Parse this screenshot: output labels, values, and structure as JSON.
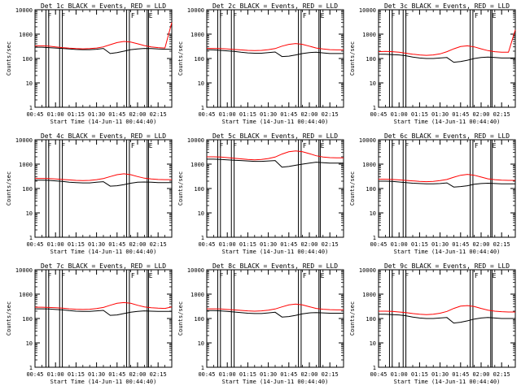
{
  "figure": {
    "xlabel": "Start Time (14-Jun-11 00:44:40)",
    "ylabel": "Counts/sec"
  },
  "chart_data": {
    "type": "line",
    "x_ticks": [
      "00:45",
      "01:00",
      "01:15",
      "01:30",
      "01:45",
      "02:00",
      "02:15"
    ],
    "y_ticks": [
      "1",
      "10",
      "100",
      "1000",
      "10000"
    ],
    "y_scale": "log",
    "ylim": [
      1,
      10000
    ],
    "xlim": [
      "00:45",
      "02:25"
    ],
    "grid": false,
    "vertical_markers": [
      {
        "x": "00:53",
        "label": "F"
      },
      {
        "x": "00:55",
        "label": ""
      },
      {
        "x": "01:03",
        "label": "F"
      },
      {
        "x": "01:05",
        "label": ""
      },
      {
        "x": "01:52",
        "label": ""
      },
      {
        "x": "01:54",
        "label": "F"
      },
      {
        "x": "02:07",
        "label": "E"
      },
      {
        "x": "02:08",
        "label": ""
      }
    ],
    "x_minutes": [
      45,
      50,
      55,
      60,
      65,
      70,
      75,
      80,
      85,
      90,
      95,
      100,
      105,
      110,
      115,
      120,
      125,
      130,
      135,
      140,
      145
    ],
    "panels": [
      {
        "title": "Det 1c BLACK = Events, RED = LLD",
        "series": [
          {
            "name": "Events",
            "color": "#000000",
            "values": [
              290,
              290,
              280,
              270,
              260,
              245,
              235,
              230,
              230,
              240,
              260,
              160,
              175,
              200,
              230,
              245,
              260,
              255,
              245,
              240,
              240
            ]
          },
          {
            "name": "LLD",
            "color": "#ff0000",
            "values": [
              330,
              330,
              320,
              300,
              280,
              265,
              255,
              250,
              255,
              270,
              300,
              370,
              450,
              500,
              470,
              400,
              340,
              300,
              280,
              270,
              3000
            ]
          }
        ]
      },
      {
        "title": "Det 2c BLACK = Events, RED = LLD",
        "series": [
          {
            "name": "Events",
            "color": "#000000",
            "values": [
              230,
              225,
              215,
              205,
              195,
              180,
              170,
              165,
              165,
              175,
              185,
              120,
              125,
              140,
              160,
              175,
              180,
              170,
              160,
              160,
              160
            ]
          },
          {
            "name": "LLD",
            "color": "#ff0000",
            "values": [
              260,
              260,
              255,
              245,
              235,
              225,
              215,
              210,
              215,
              230,
              255,
              320,
              380,
              410,
              380,
              320,
              270,
              245,
              230,
              225,
              225
            ]
          }
        ]
      },
      {
        "title": "Det 3c BLACK = Events, RED = LLD",
        "series": [
          {
            "name": "Events",
            "color": "#000000",
            "values": [
              150,
              150,
              145,
              140,
              130,
              115,
              105,
              100,
              100,
              105,
              110,
              70,
              75,
              85,
              100,
              110,
              115,
              110,
              105,
              105,
              105
            ]
          },
          {
            "name": "LLD",
            "color": "#ff0000",
            "values": [
              190,
              195,
              190,
              180,
              165,
              150,
              140,
              135,
              140,
              155,
              190,
              250,
              310,
              330,
              300,
              250,
              210,
              190,
              180,
              180,
              1500
            ]
          }
        ]
      },
      {
        "title": "Det 4c BLACK = Events, RED = LLD",
        "series": [
          {
            "name": "Events",
            "color": "#000000",
            "values": [
              220,
              220,
              215,
              205,
              195,
              180,
              175,
              170,
              170,
              180,
              190,
              125,
              130,
              145,
              165,
              180,
              185,
              180,
              175,
              175,
              175
            ]
          },
          {
            "name": "LLD",
            "color": "#ff0000",
            "values": [
              260,
              260,
              255,
              245,
              235,
              225,
              215,
              210,
              215,
              230,
              255,
              310,
              370,
              400,
              370,
              310,
              265,
              245,
              235,
              230,
              230
            ]
          }
        ]
      },
      {
        "title": "Det 5c BLACK = Events, RED = LLD",
        "series": [
          {
            "name": "Events",
            "color": "#000000",
            "values": [
              1600,
              1600,
              1550,
              1500,
              1450,
              1400,
              1350,
              1300,
              1300,
              1350,
              1400,
              750,
              800,
              900,
              1000,
              1100,
              1200,
              1150,
              1100,
              1100,
              1100
            ]
          },
          {
            "name": "LLD",
            "color": "#ff0000",
            "values": [
              2000,
              2000,
              1950,
              1850,
              1750,
              1650,
              1550,
              1500,
              1550,
              1700,
              1950,
              2600,
              3200,
              3500,
              3200,
              2700,
              2200,
              1950,
              1850,
              1800,
              1800
            ]
          }
        ]
      },
      {
        "title": "Det 6c BLACK = Events, RED = LLD",
        "series": [
          {
            "name": "Events",
            "color": "#000000",
            "values": [
              200,
              200,
              195,
              185,
              175,
              165,
              160,
              155,
              155,
              160,
              170,
              115,
              120,
              130,
              150,
              160,
              165,
              160,
              155,
              155,
              155
            ]
          },
          {
            "name": "LLD",
            "color": "#ff0000",
            "values": [
              240,
              240,
              235,
              225,
              215,
              205,
              195,
              190,
              195,
              210,
              235,
              290,
              350,
              380,
              350,
              295,
              250,
              230,
              220,
              215,
              215
            ]
          }
        ]
      },
      {
        "title": "Det 7c BLACK = Events, RED = LLD",
        "series": [
          {
            "name": "Events",
            "color": "#000000",
            "values": [
              250,
              250,
              245,
              235,
              225,
              210,
              200,
              195,
              195,
              205,
              215,
              135,
              140,
              160,
              180,
              195,
              205,
              200,
              195,
              195,
              195
            ]
          },
          {
            "name": "LLD",
            "color": "#ff0000",
            "values": [
              290,
              290,
              285,
              275,
              265,
              250,
              240,
              235,
              240,
              255,
              285,
              350,
              420,
              450,
              420,
              350,
              300,
              275,
              265,
              260,
              300
            ]
          }
        ]
      },
      {
        "title": "Det 8c BLACK = Events, RED = LLD",
        "series": [
          {
            "name": "Events",
            "color": "#000000",
            "values": [
              210,
              210,
              205,
              195,
              185,
              175,
              165,
              160,
              160,
              170,
              180,
              115,
              120,
              135,
              155,
              170,
              175,
              170,
              165,
              165,
              165
            ]
          },
          {
            "name": "LLD",
            "color": "#ff0000",
            "values": [
              250,
              250,
              245,
              235,
              225,
              215,
              205,
              200,
              205,
              220,
              245,
              300,
              360,
              390,
              360,
              305,
              260,
              240,
              230,
              225,
              225
            ]
          }
        ]
      },
      {
        "title": "Det 9c BLACK = Events, RED = LLD",
        "series": [
          {
            "name": "Events",
            "color": "#000000",
            "values": [
              150,
              150,
              145,
              140,
              130,
              115,
              105,
              100,
              100,
              105,
              110,
              65,
              70,
              80,
              95,
              105,
              110,
              105,
              100,
              100,
              100
            ]
          },
          {
            "name": "LLD",
            "color": "#ff0000",
            "values": [
              200,
              200,
              195,
              185,
              175,
              160,
              150,
              145,
              150,
              165,
              195,
              260,
              320,
              340,
              310,
              260,
              220,
              200,
              190,
              185,
              185
            ]
          }
        ]
      }
    ]
  }
}
